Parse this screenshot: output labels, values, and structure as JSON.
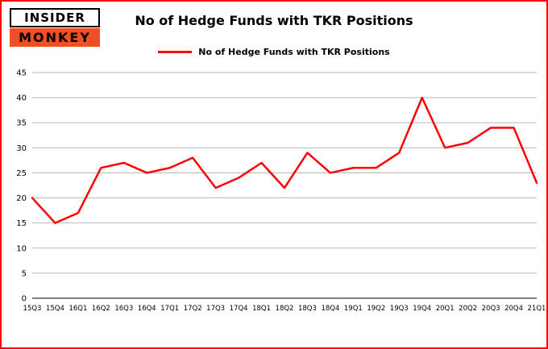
{
  "logo": {
    "line1": "INSIDER",
    "line2": "MONKEY"
  },
  "header": {
    "title": "No of Hedge Funds with TKR Positions"
  },
  "legend": {
    "label": "No of Hedge Funds with TKR Positions",
    "color": "#ff0000"
  },
  "colors": {
    "line": "#ff0000",
    "grid": "#b7b7b7",
    "axis": "#000000",
    "frame": "#ff0000",
    "logo_accent": "#f04e23"
  },
  "chart_data": {
    "type": "line",
    "title": "No of Hedge Funds with TKR Positions",
    "xlabel": "",
    "ylabel": "",
    "categories": [
      "15Q3",
      "15Q4",
      "16Q1",
      "16Q2",
      "16Q3",
      "16Q4",
      "17Q1",
      "17Q2",
      "17Q3",
      "17Q4",
      "18Q1",
      "18Q2",
      "18Q3",
      "18Q4",
      "19Q1",
      "19Q2",
      "19Q3",
      "19Q4",
      "20Q1",
      "20Q2",
      "20Q3",
      "20Q4",
      "21Q1"
    ],
    "series": [
      {
        "name": "No of Hedge Funds with TKR Positions",
        "color": "#ff0000",
        "values": [
          20,
          15,
          17,
          26,
          27,
          25,
          26,
          28,
          22,
          24,
          27,
          22,
          29,
          25,
          26,
          26,
          29,
          40,
          30,
          31,
          34,
          34,
          23
        ]
      }
    ],
    "ylim": [
      0,
      45
    ],
    "ytick_step": 5,
    "grid": true,
    "legend_position": "top"
  }
}
